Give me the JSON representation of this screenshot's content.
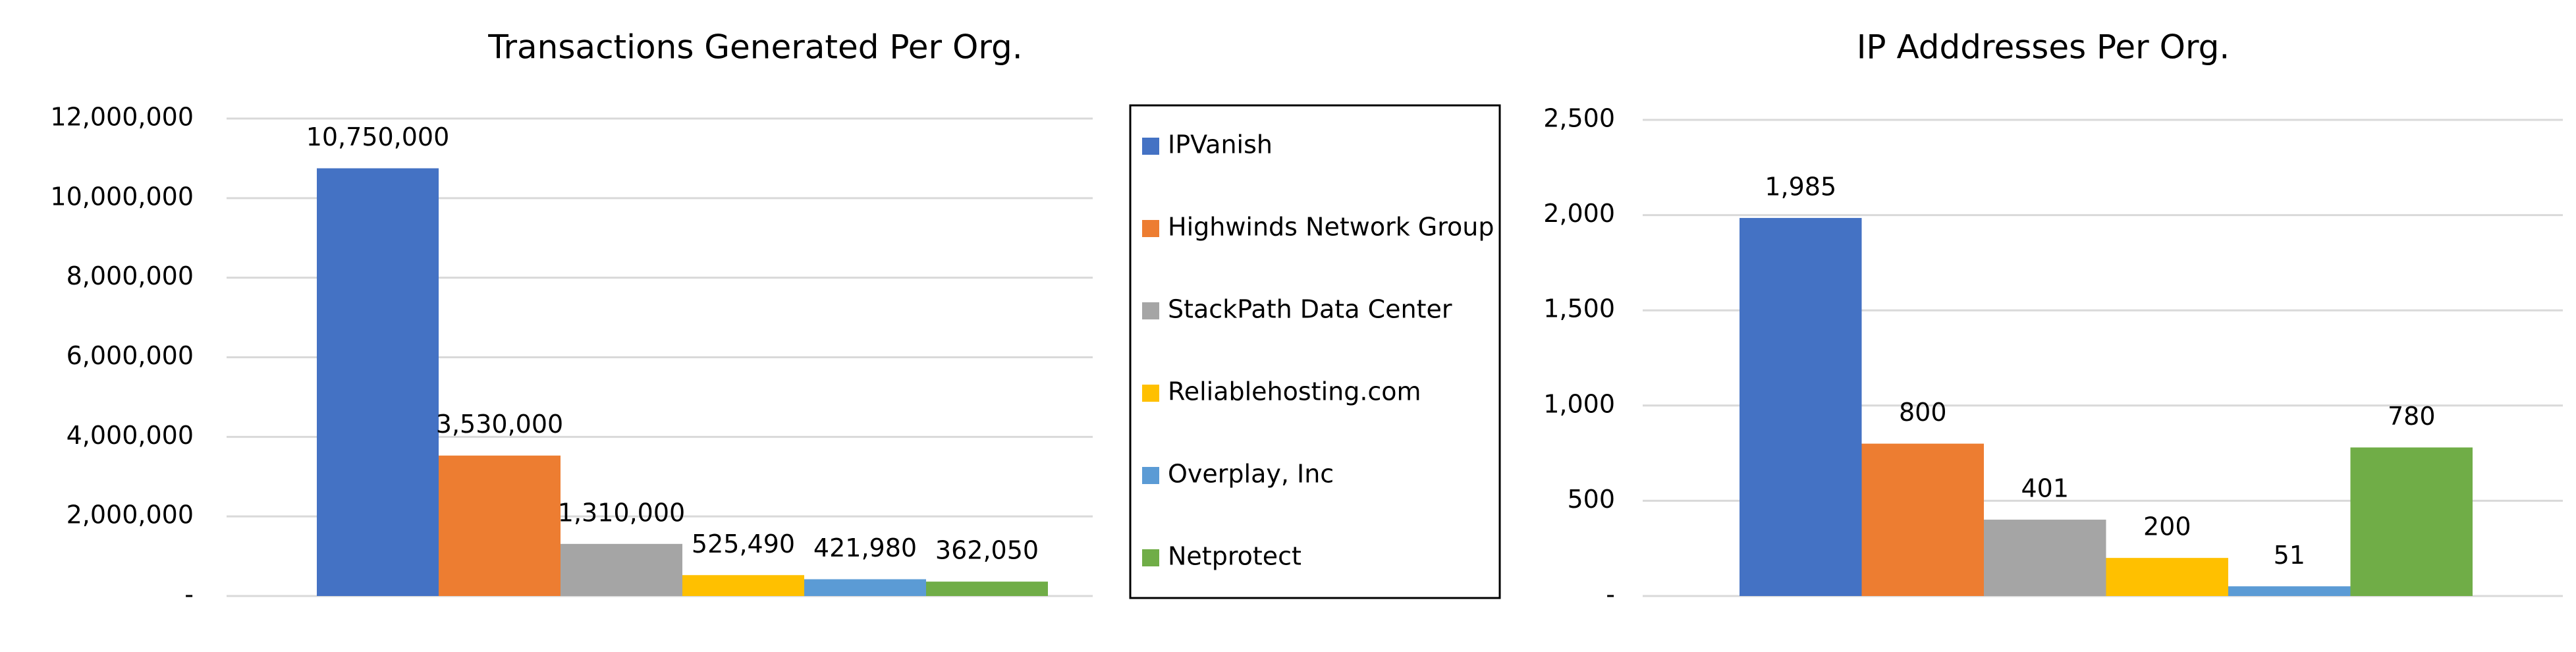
{
  "chart_data": [
    {
      "type": "bar",
      "title": "Transactions Generated Per Org.",
      "series": [
        {
          "name": "IPVanish",
          "color": "#4472c4",
          "values": [
            10750000
          ],
          "value_labels": [
            "10,750,000"
          ]
        },
        {
          "name": "Highwinds Network Group",
          "color": "#ed7d31",
          "values": [
            3530000
          ],
          "value_labels": [
            "3,530,000"
          ]
        },
        {
          "name": "StackPath Data Center",
          "color": "#a5a5a5",
          "values": [
            1310000
          ],
          "value_labels": [
            "1,310,000"
          ]
        },
        {
          "name": "Reliablehosting.com",
          "color": "#ffc000",
          "values": [
            525490
          ],
          "value_labels": [
            "525,490"
          ]
        },
        {
          "name": "Overplay, Inc",
          "color": "#5b9bd5",
          "values": [
            421980
          ],
          "value_labels": [
            "421,980"
          ]
        },
        {
          "name": "Netprotect",
          "color": "#70ad47",
          "values": [
            362050
          ],
          "value_labels": [
            "362,050"
          ]
        }
      ],
      "ylim": [
        0,
        12000000
      ],
      "yticks": [
        {
          "value": 0,
          "label": "-"
        },
        {
          "value": 2000000,
          "label": "2,000,000"
        },
        {
          "value": 4000000,
          "label": "4,000,000"
        },
        {
          "value": 6000000,
          "label": "6,000,000"
        },
        {
          "value": 8000000,
          "label": "8,000,000"
        },
        {
          "value": 10000000,
          "label": "10,000,000"
        },
        {
          "value": 12000000,
          "label": "12,000,000"
        }
      ],
      "grid": true,
      "legend": "right"
    },
    {
      "type": "bar",
      "title": "IP Adddresses Per Org.",
      "series": [
        {
          "color": "#4472c4",
          "values": [
            1985
          ],
          "value_labels": [
            "1,985"
          ]
        },
        {
          "color": "#ed7d31",
          "values": [
            800
          ]
        },
        {
          "color": "#a5a5a5",
          "values": [
            401
          ]
        },
        {
          "color": "#ffc000",
          "values": [
            200
          ]
        },
        {
          "color": "#5b9bd5",
          "values": [
            51
          ]
        },
        {
          "color": "#70ad47",
          "values": [
            780
          ]
        }
      ],
      "ylim": [
        0,
        2500
      ],
      "yticks": [
        {
          "value": 0,
          "label": "-"
        },
        {
          "value": 500,
          "label": "500"
        },
        {
          "value": 1000,
          "label": "1,000"
        },
        {
          "value": 1500,
          "label": "1,500"
        },
        {
          "value": 2000,
          "label": "2,000"
        },
        {
          "value": 2500,
          "label": "2,500"
        }
      ],
      "grid": true
    }
  ]
}
